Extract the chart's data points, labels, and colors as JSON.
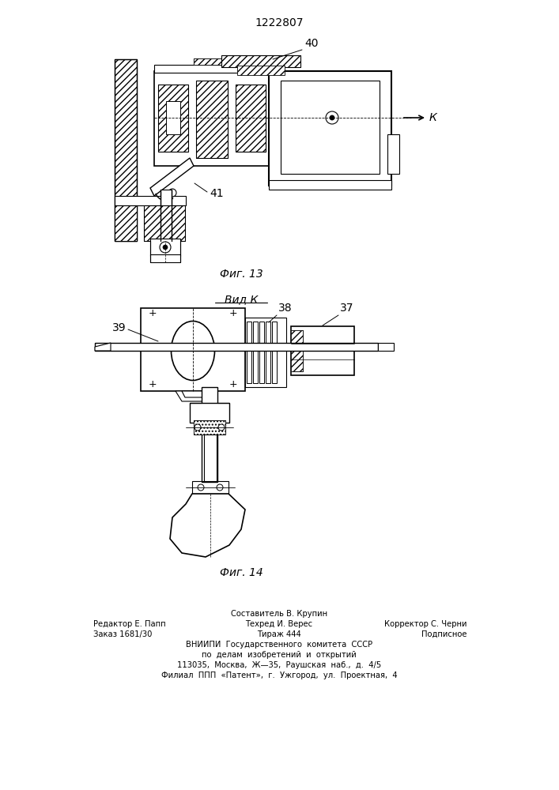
{
  "title": "1222807",
  "fig13_caption": "Фиг. 13",
  "fig14_caption": "Фиг. 14",
  "view_label": "Вид К",
  "arrow_label": "К",
  "label_40": "40",
  "label_41": "41",
  "label_39": "39",
  "label_38": "38",
  "label_37": "37",
  "footer_line1": "Составитель В. Крупин",
  "footer_line2_left": "Редактор Е. Папп",
  "footer_line2_mid": "Техред И. Верес",
  "footer_line2_right": "Корректор С. Черни",
  "footer_line3_left": "Заказ 1681/30",
  "footer_line3_mid": "Тираж 444",
  "footer_line3_right": "Подписное",
  "footer_line4": "ВНИИПИ  Государственного  комитета  СССР",
  "footer_line5": "по  делам  изобретений  и  открытий",
  "footer_line6": "113035,  Москва,  Ж—35,  Раушская  наб.,  д.  4/5",
  "footer_line7": "Филиал  ППП  «Патент»,  г.  Ужгород,  ул.  Проектная,  4",
  "bg_color": "#ffffff",
  "line_color": "#000000"
}
